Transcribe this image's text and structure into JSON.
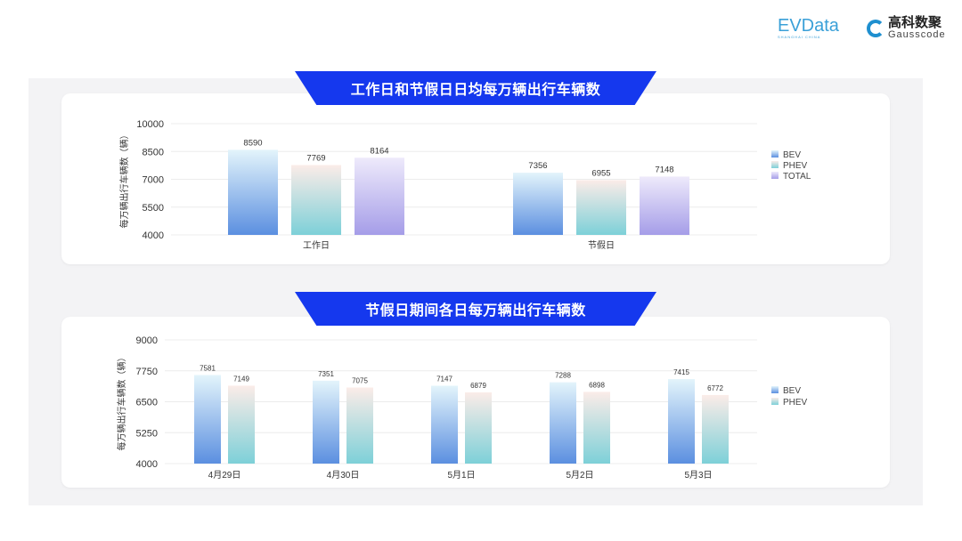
{
  "logos": {
    "evdata": "EVData",
    "evdata_sub": "SHANGHAI CHINA",
    "gauss_cn": "高科数聚",
    "gauss_en": "Gausscode"
  },
  "colors": {
    "banner": "#1538ee",
    "BEV": [
      "#e3f4fb",
      "#5b8fe0"
    ],
    "PHEV": [
      "#fbece8",
      "#7dd0d8"
    ],
    "TOTAL": [
      "#eeeafb",
      "#a59de8"
    ]
  },
  "chart_data": [
    {
      "type": "bar",
      "title": "工作日和节假日日均每万辆出行车辆数",
      "ylabel": "每万辆出行车辆数（辆）",
      "xlabel": "",
      "categories": [
        "工作日",
        "节假日"
      ],
      "ylim": [
        4000,
        10000
      ],
      "yticks": [
        "4000",
        "5500",
        "7000",
        "8500",
        "10000"
      ],
      "grid": true,
      "legend": "right",
      "series": [
        {
          "name": "BEV",
          "values": [
            8590,
            7356
          ]
        },
        {
          "name": "PHEV",
          "values": [
            7769,
            6955
          ]
        },
        {
          "name": "TOTAL",
          "values": [
            8164,
            7148
          ]
        }
      ]
    },
    {
      "type": "bar",
      "title": "节假日期间各日每万辆出行车辆数",
      "ylabel": "每万辆出行车辆数（辆）",
      "xlabel": "",
      "categories": [
        "4月29日",
        "4月30日",
        "5月1日",
        "5月2日",
        "5月3日"
      ],
      "ylim": [
        4000,
        9000
      ],
      "yticks": [
        "4000",
        "5250",
        "6500",
        "7750",
        "9000"
      ],
      "grid": true,
      "legend": "right",
      "series": [
        {
          "name": "BEV",
          "values": [
            7581,
            7351,
            7147,
            7288,
            7415
          ]
        },
        {
          "name": "PHEV",
          "values": [
            7149,
            7075,
            6879,
            6898,
            6772
          ]
        }
      ]
    }
  ]
}
